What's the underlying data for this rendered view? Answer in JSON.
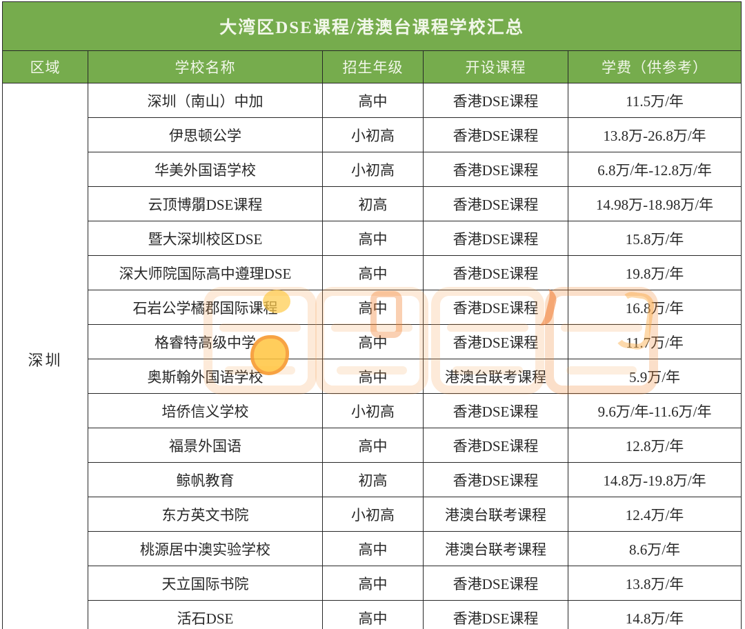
{
  "title": "大湾区DSE课程/港澳台课程学校汇总",
  "theme": {
    "banner_green": "#76ac4d",
    "banner_text": "#f2f7ea",
    "grid_line": "#272727",
    "body_text": "#282828",
    "page_background": "#ffffff",
    "watermark_orange": "#f49e50",
    "watermark_yellow": "#ffc43e"
  },
  "table": {
    "region": "深圳",
    "columns": [
      "区域",
      "学校名称",
      "招生年级",
      "开设课程",
      "学费（供参考）"
    ],
    "rows": [
      {
        "school": "深圳（南山）中加",
        "grade": "高中",
        "course": "香港DSE课程",
        "fee": "11.5万/年"
      },
      {
        "school": "伊思顿公学",
        "grade": "小初高",
        "course": "香港DSE课程",
        "fee": "13.8万-26.8万/年"
      },
      {
        "school": "华美外国语学校",
        "grade": "小初高",
        "course": "香港DSE课程",
        "fee": "6.8万/年-12.8万/年"
      },
      {
        "school": "云顶博朤DSE课程",
        "grade": "初高",
        "course": "香港DSE课程",
        "fee": "14.98万-18.98万/年"
      },
      {
        "school": "暨大深圳校区DSE",
        "grade": "高中",
        "course": "香港DSE课程",
        "fee": "15.8万/年"
      },
      {
        "school": "深大师院国际高中遵理DSE",
        "grade": "高中",
        "course": "香港DSE课程",
        "fee": "19.8万/年"
      },
      {
        "school": "石岩公学橘郡国际课程",
        "grade": "高中",
        "course": "香港DSE课程",
        "fee": "16.8万/年"
      },
      {
        "school": "格睿特高级中学",
        "grade": "高中",
        "course": "香港DSE课程",
        "fee": "11.7万/年"
      },
      {
        "school": "奥斯翰外国语学校",
        "grade": "高中",
        "course": "港澳台联考课程",
        "fee": "5.9万/年"
      },
      {
        "school": "培侨信义学校",
        "grade": "小初高",
        "course": "香港DSE课程",
        "fee": "9.6万/年-11.6万/年"
      },
      {
        "school": "福景外国语",
        "grade": "高中",
        "course": "香港DSE课程",
        "fee": "12.8万/年"
      },
      {
        "school": "鲸帆教育",
        "grade": "初高",
        "course": "香港DSE课程",
        "fee": "14.8万-19.8万/年"
      },
      {
        "school": "东方英文书院",
        "grade": "小初高",
        "course": "港澳台联考课程",
        "fee": "12.4万/年"
      },
      {
        "school": "桃源居中澳实验学校",
        "grade": "高中",
        "course": "港澳台联考课程",
        "fee": "8.6万/年"
      },
      {
        "school": "天立国际书院",
        "grade": "高中",
        "course": "香港DSE课程",
        "fee": "13.8万/年"
      },
      {
        "school": "活石DSE",
        "grade": "高中",
        "course": "香港DSE课程",
        "fee": "14.8万/年"
      }
    ]
  },
  "watermark": {
    "description": "faint orange four-character logo watermark over table center"
  }
}
